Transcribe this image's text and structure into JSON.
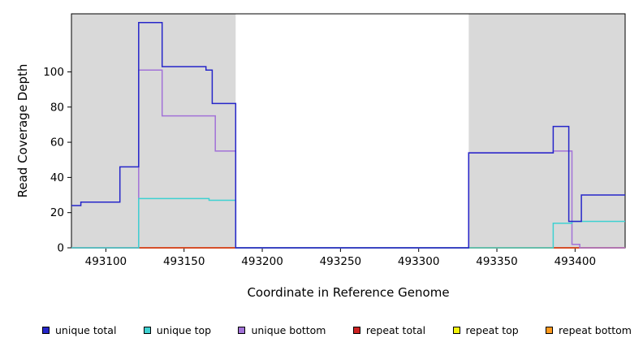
{
  "chart_data": {
    "type": "line",
    "step": true,
    "title": "",
    "xlabel": "Coordinate in Reference Genome",
    "ylabel": "Read Coverage Depth",
    "xlim": [
      493078,
      493432
    ],
    "ylim": [
      0,
      133
    ],
    "xticks": [
      493100,
      493150,
      493200,
      493250,
      493300,
      493350,
      493400
    ],
    "yticks": [
      0,
      20,
      40,
      60,
      80,
      100
    ],
    "grid": false,
    "legend_position": "bottom",
    "shade_color": "#d9d9d9",
    "shaded_regions": [
      [
        493078,
        493183
      ],
      [
        493332,
        493432
      ]
    ],
    "series": [
      {
        "name": "unique total",
        "color": "#2626c9",
        "points": [
          [
            493078,
            24
          ],
          [
            493084,
            26
          ],
          [
            493109,
            46
          ],
          [
            493121,
            128
          ],
          [
            493136,
            103
          ],
          [
            493164,
            101
          ],
          [
            493168,
            82
          ],
          [
            493183,
            0
          ],
          [
            493332,
            54
          ],
          [
            493386,
            69
          ],
          [
            493396,
            15
          ],
          [
            493404,
            30
          ],
          [
            493432,
            30
          ]
        ]
      },
      {
        "name": "unique top",
        "color": "#3fd1d1",
        "points": [
          [
            493078,
            0
          ],
          [
            493121,
            28
          ],
          [
            493166,
            27
          ],
          [
            493183,
            0
          ],
          [
            493386,
            14
          ],
          [
            493398,
            15
          ],
          [
            493432,
            15
          ]
        ]
      },
      {
        "name": "unique bottom",
        "color": "#a272d8",
        "points": [
          [
            493078,
            0
          ],
          [
            493121,
            101
          ],
          [
            493136,
            75
          ],
          [
            493170,
            55
          ],
          [
            493183,
            0
          ],
          [
            493332,
            54
          ],
          [
            493386,
            55
          ],
          [
            493398,
            2
          ],
          [
            493403,
            0
          ],
          [
            493432,
            0
          ]
        ]
      },
      {
        "name": "repeat total",
        "color": "#cc2222",
        "points": [
          [
            493078,
            0
          ],
          [
            493432,
            0
          ]
        ]
      },
      {
        "name": "repeat top",
        "color": "#f2f20c",
        "points": [
          [
            493078,
            0
          ],
          [
            493432,
            0
          ]
        ]
      },
      {
        "name": "repeat bottom",
        "color": "#ff9a1e",
        "points": [
          [
            493078,
            0
          ],
          [
            493432,
            0
          ]
        ]
      }
    ]
  }
}
